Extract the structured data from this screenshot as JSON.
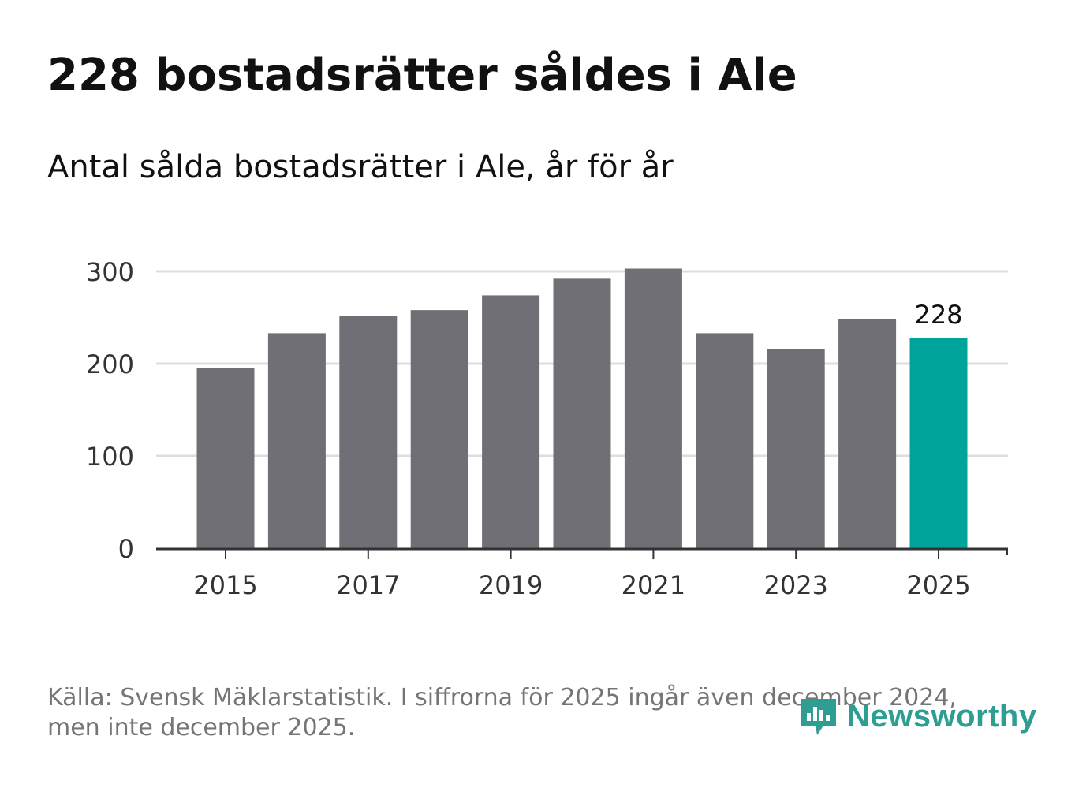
{
  "header": {
    "title": "228 bostadsrätter såldes i Ale",
    "subtitle": "Antal sålda bostadsrätter i Ale, år för år"
  },
  "footer": {
    "source": "Källa: Svensk Mäklarstatistik. I siffrorna för 2025 ingår även december 2024, men inte december 2025.",
    "brand": "Newsworthy"
  },
  "chart_data": {
    "type": "bar",
    "categories": [
      "2015",
      "2016",
      "2017",
      "2018",
      "2019",
      "2020",
      "2021",
      "2022",
      "2023",
      "2024",
      "2025"
    ],
    "values": [
      195,
      233,
      252,
      258,
      274,
      292,
      303,
      233,
      216,
      248,
      228
    ],
    "x_tick_labels": [
      "2015",
      "2017",
      "2019",
      "2021",
      "2023",
      "2025"
    ],
    "y_ticks": [
      0,
      100,
      200,
      300
    ],
    "ylim": [
      0,
      300
    ],
    "highlight_category": "2025",
    "highlight_label": "228",
    "xlabel": "",
    "ylabel": "",
    "grid": true,
    "colors": {
      "bar": "#706f75",
      "highlight": "#00a49a",
      "grid": "#dddddd",
      "axis": "#333333"
    }
  }
}
